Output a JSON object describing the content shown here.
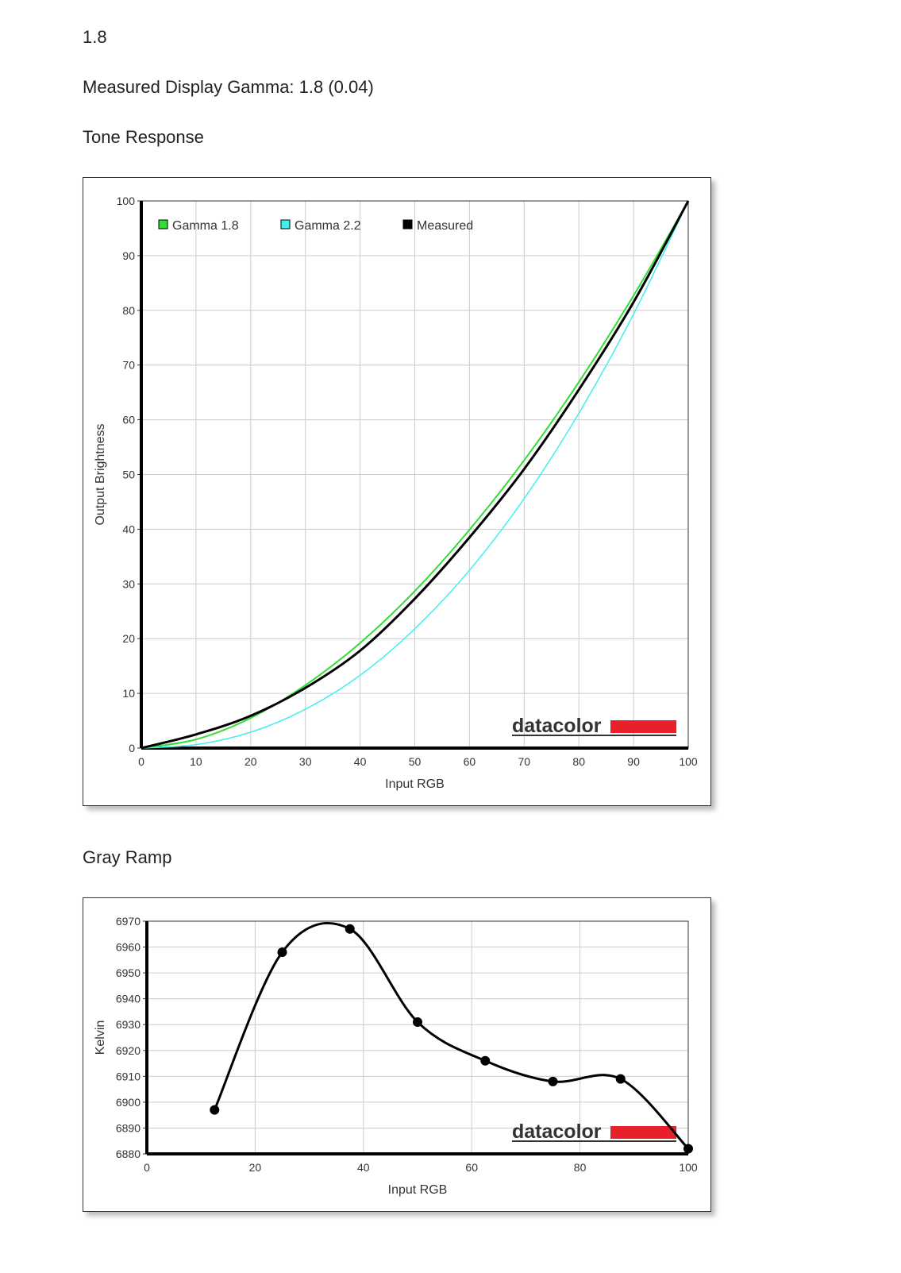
{
  "header": {
    "value": "1.8",
    "measured_gamma": "Measured Display Gamma: 1.8 (0.04)",
    "tone_title": "Tone Response",
    "gray_title": "Gray Ramp"
  },
  "logo_text": "datacolor",
  "chart_data": [
    {
      "type": "line",
      "title": "Tone Response",
      "xlabel": "Input RGB",
      "ylabel": "Output Brightness",
      "xlim": [
        0,
        100
      ],
      "ylim": [
        0,
        100
      ],
      "xticks": [
        "0",
        "10",
        "20",
        "30",
        "40",
        "50",
        "60",
        "70",
        "80",
        "90",
        "100"
      ],
      "yticks": [
        "0",
        "10",
        "20",
        "30",
        "40",
        "50",
        "60",
        "70",
        "80",
        "90",
        "100"
      ],
      "grid": true,
      "legend": "top-left",
      "x": [
        0,
        10,
        20,
        30,
        40,
        50,
        60,
        70,
        80,
        90,
        100
      ],
      "series": [
        {
          "name": "Gamma 1.8",
          "color": "#33dd33",
          "values": [
            0,
            1.58,
            5.5,
            11.5,
            19.2,
            28.7,
            39.9,
            52.6,
            66.9,
            82.7,
            100
          ]
        },
        {
          "name": "Gamma 2.2",
          "color": "#44eeee",
          "values": [
            0,
            0.63,
            2.9,
            7.1,
            13.3,
            21.8,
            32.5,
            45.6,
            61.2,
            79.3,
            100
          ]
        },
        {
          "name": "Measured",
          "color": "#000000",
          "values": [
            0,
            2.5,
            5.9,
            11,
            17.8,
            27.3,
            38.5,
            51,
            65.5,
            81.5,
            100
          ]
        }
      ]
    },
    {
      "type": "line",
      "title": "Gray Ramp",
      "xlabel": "Input RGB",
      "ylabel": "Kelvin",
      "xlim": [
        0,
        100
      ],
      "ylim": [
        6880,
        6970
      ],
      "xticks": [
        "0",
        "20",
        "40",
        "60",
        "80",
        "100"
      ],
      "yticks": [
        "6880",
        "6890",
        "6900",
        "6910",
        "6920",
        "6930",
        "6940",
        "6950",
        "6960",
        "6970"
      ],
      "grid": true,
      "x": [
        12.5,
        25,
        37.5,
        50,
        62.5,
        75,
        87.5,
        100
      ],
      "series": [
        {
          "name": "Kelvin",
          "color": "#000000",
          "values": [
            6897,
            6958,
            6967,
            6931,
            6916,
            6908,
            6909,
            6882
          ]
        }
      ]
    }
  ]
}
